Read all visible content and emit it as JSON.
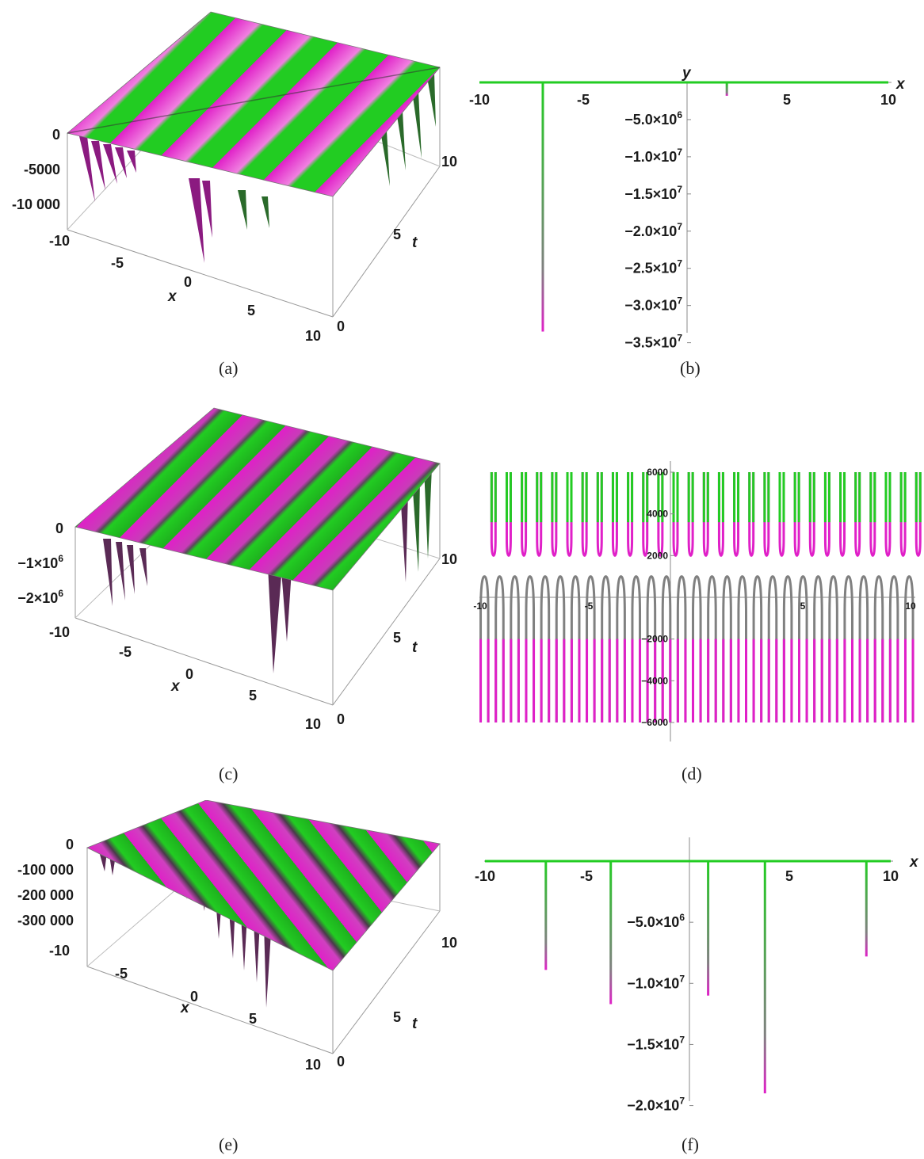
{
  "captions": [
    "(a)",
    "(b)",
    "(c)",
    "(d)",
    "(e)",
    "(f)"
  ],
  "colors": {
    "magenta": "#e020c8",
    "green": "#22cc22",
    "dark": "#3a2a3a",
    "gray": "#808080"
  },
  "chart_data": [
    {
      "type": "surface3d",
      "caption": "(a)",
      "xlabel": "x",
      "ylabel": "t",
      "xticks": [
        "-10",
        "-5",
        "0",
        "5",
        "10"
      ],
      "tticks": [
        "0",
        "5",
        "10"
      ],
      "zticks": [
        "0",
        "-5000",
        "-10 000"
      ],
      "xlim": [
        -10,
        10
      ],
      "tlim": [
        0,
        12
      ],
      "zlim": [
        -12000,
        500
      ],
      "colors": [
        "#e020c8",
        "#22cc22"
      ]
    },
    {
      "type": "line",
      "caption": "(b)",
      "xlabel": "x",
      "ylabel": "y",
      "xticks": [
        "-10",
        "-5",
        "5",
        "10"
      ],
      "yticks": [
        "-5.0",
        "-1.0",
        "-1.5",
        "-2.0",
        "-2.5",
        "-3.0",
        "-3.5"
      ],
      "ytick_exponents": [
        "6",
        "7",
        "7",
        "7",
        "7",
        "7",
        "7"
      ],
      "ytick_values": [
        -5000000,
        -10000000,
        -15000000,
        -20000000,
        -25000000,
        -30000000,
        -35000000
      ],
      "xlim": [
        -10,
        10
      ],
      "ylim": [
        -36000000,
        0
      ],
      "baseline": 0,
      "spikes": [
        {
          "x": -6.9,
          "y": -33500000
        },
        {
          "x": 2.1,
          "y": -1800000
        }
      ]
    },
    {
      "type": "surface3d",
      "caption": "(c)",
      "xlabel": "x",
      "ylabel": "t",
      "xticks": [
        "-10",
        "-5",
        "0",
        "5",
        "10"
      ],
      "tticks": [
        "0",
        "5",
        "10"
      ],
      "zticks": [
        "0",
        "-1",
        "-2"
      ],
      "ztick_exponents": [
        "",
        "6",
        "6"
      ],
      "xlim": [
        -10,
        10
      ],
      "tlim": [
        0,
        12
      ],
      "zlim": [
        -2500000,
        100000
      ],
      "colors": [
        "#e020c8",
        "#22cc22"
      ]
    },
    {
      "type": "line",
      "caption": "(d)",
      "xticks": [
        "-10",
        "-5",
        "5",
        "10"
      ],
      "yticks": [
        "6000",
        "4000",
        "2000",
        "-2000",
        "-4000",
        "-6000"
      ],
      "ytick_values": [
        6000,
        4000,
        2000,
        -2000,
        -4000,
        -6000
      ],
      "xlim": [
        -10,
        10
      ],
      "ylim": [
        -6000,
        6000
      ],
      "period": 0.705,
      "peak_top": 6000,
      "peak_bottom": -6000
    },
    {
      "type": "surface3d",
      "caption": "(e)",
      "xlabel": "x",
      "ylabel": "t",
      "xticks": [
        "-10",
        "-5",
        "0",
        "5",
        "10"
      ],
      "tticks": [
        "0",
        "5",
        "10"
      ],
      "zticks": [
        "0",
        "-100 000",
        "-200 000",
        "-300 000"
      ],
      "xlim": [
        -10,
        10
      ],
      "tlim": [
        0,
        12
      ],
      "zlim": [
        -380000,
        10000
      ],
      "colors": [
        "#e020c8",
        "#22cc22"
      ]
    },
    {
      "type": "line",
      "caption": "(f)",
      "xlabel": "x",
      "xticks": [
        "-10",
        "-5",
        "5",
        "10"
      ],
      "yticks": [
        "-5.0",
        "-1.0",
        "-1.5",
        "-2.0"
      ],
      "ytick_exponents": [
        "6",
        "7",
        "7",
        "7"
      ],
      "ytick_values": [
        -5000000,
        -10000000,
        -15000000,
        -20000000
      ],
      "xlim": [
        -10,
        10
      ],
      "ylim": [
        -21000000,
        0
      ],
      "baseline": 0,
      "spikes": [
        {
          "x": -7.0,
          "y": -8900000
        },
        {
          "x": -3.8,
          "y": -11700000
        },
        {
          "x": 1.0,
          "y": -11000000
        },
        {
          "x": 3.8,
          "y": -19000000
        },
        {
          "x": 8.8,
          "y": -7800000
        }
      ]
    }
  ]
}
